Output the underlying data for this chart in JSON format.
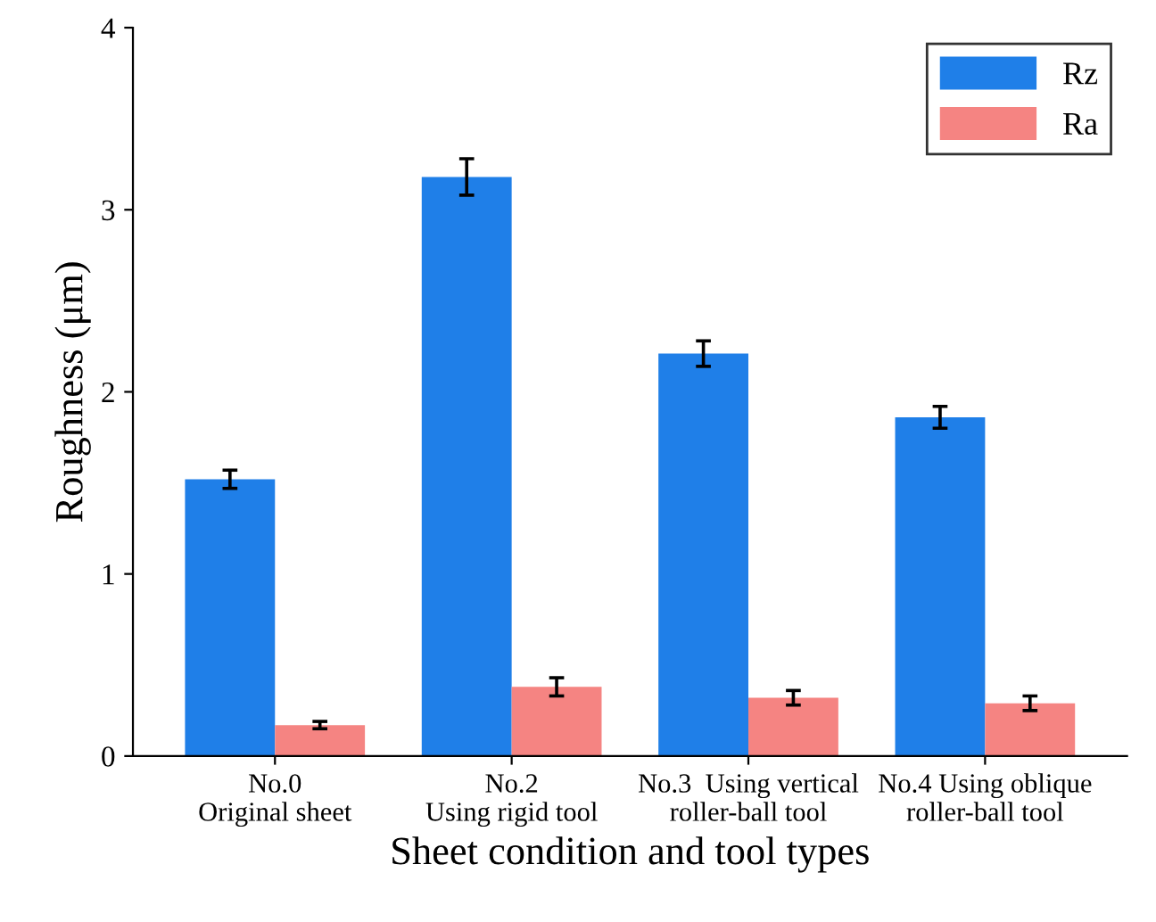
{
  "chart_data": {
    "type": "bar",
    "xlabel": "Sheet condition and tool types",
    "ylabel": "Roughness (μm)",
    "categories": [
      "No.0\nOriginal sheet",
      "No.2\nUsing rigid tool",
      "No.3  Using vertical\nroller-ball tool",
      "No.4 Using oblique\nroller-ball tool"
    ],
    "series": [
      {
        "name": "Rz",
        "color": "#1f7fe8",
        "values": [
          1.52,
          3.18,
          2.21,
          1.86
        ],
        "errors": [
          0.05,
          0.1,
          0.07,
          0.06
        ]
      },
      {
        "name": "Ra",
        "color": "#f58482",
        "values": [
          0.17,
          0.38,
          0.32,
          0.29
        ],
        "errors": [
          0.02,
          0.05,
          0.04,
          0.04
        ]
      }
    ],
    "ylim": [
      0,
      4
    ],
    "yticks": [
      0,
      1,
      2,
      3,
      4
    ],
    "grid": false,
    "legend": "top right"
  }
}
